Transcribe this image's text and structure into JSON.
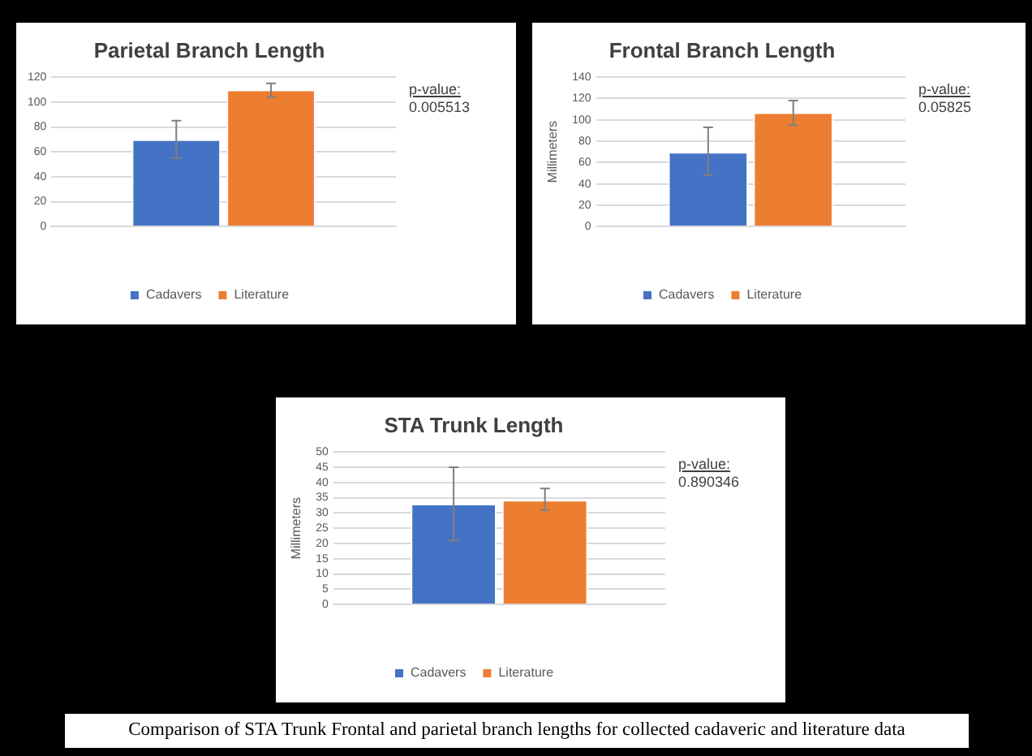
{
  "chart_data": [
    {
      "type": "bar",
      "title": "Parietal Branch Length",
      "categories": [
        null
      ],
      "series": [
        {
          "name": "Cadavers",
          "color": "#4472c4",
          "values": [
            70
          ],
          "errors": [
            [
              55,
              85
            ]
          ]
        },
        {
          "name": "Literature",
          "color": "#ed7d31",
          "values": [
            110
          ],
          "errors": [
            [
              104,
              115
            ]
          ]
        }
      ],
      "ylim": [
        0,
        120
      ],
      "yticks": [
        0,
        20,
        40,
        60,
        80,
        100,
        120
      ],
      "grid": "y",
      "legend": "bottom",
      "annotations": [
        "p-value:",
        "0.005513"
      ]
    },
    {
      "type": "bar",
      "title": "Frontal Branch Length",
      "ylabel": "Millimeters",
      "categories": [
        null
      ],
      "series": [
        {
          "name": "Cadavers",
          "color": "#4472c4",
          "values": [
            70
          ],
          "errors": [
            [
              48,
              93
            ]
          ]
        },
        {
          "name": "Literature",
          "color": "#ed7d31",
          "values": [
            107
          ],
          "errors": [
            [
              95,
              118
            ]
          ]
        }
      ],
      "ylim": [
        0,
        140
      ],
      "yticks": [
        0,
        20,
        40,
        60,
        80,
        100,
        120,
        140
      ],
      "grid": "y",
      "legend": "bottom",
      "annotations": [
        "p-value:",
        "0.05825"
      ]
    },
    {
      "type": "bar",
      "title": "STA Trunk Length",
      "ylabel": "Millimeters",
      "categories": [
        null
      ],
      "series": [
        {
          "name": "Cadavers",
          "color": "#4472c4",
          "values": [
            33
          ],
          "errors": [
            [
              21,
              45
            ]
          ]
        },
        {
          "name": "Literature",
          "color": "#ed7d31",
          "values": [
            34.3
          ],
          "errors": [
            [
              31,
              38
            ]
          ]
        }
      ],
      "ylim": [
        0,
        50
      ],
      "yticks": [
        0,
        5,
        10,
        15,
        20,
        25,
        30,
        35,
        40,
        45,
        50
      ],
      "grid": "y",
      "legend": "bottom",
      "annotations": [
        "p-value:",
        "0.890346"
      ]
    },
    {
      "type": "other",
      "title": "Comparison of STA Trunk Frontal and parietal branch lengths for collected cadaveric and literature data"
    }
  ]
}
